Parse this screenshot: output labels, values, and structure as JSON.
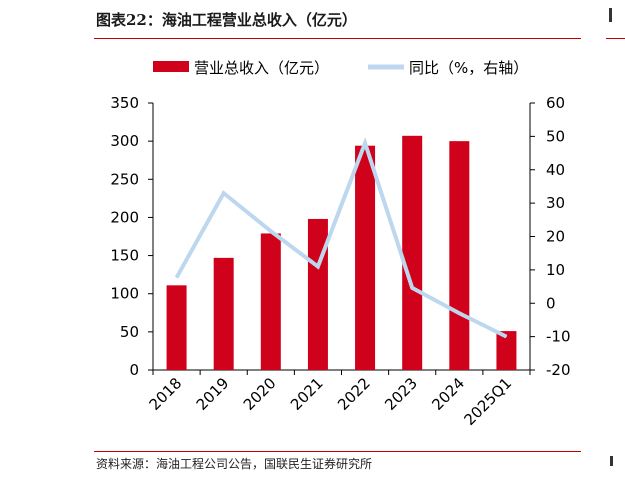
{
  "header": {
    "title": "图表22：海油工程营业总收入（亿元）"
  },
  "footer": {
    "source": "资料来源：海油工程公司公告，国联民生证券研究所"
  },
  "colors": {
    "bar": "#d0021b",
    "line": "#bdd7ee",
    "rule": "#c00000"
  },
  "chart_data": {
    "type": "bar",
    "categories": [
      "2018",
      "2019",
      "2020",
      "2021",
      "2022",
      "2023",
      "2024",
      "2025Q1"
    ],
    "series": [
      {
        "name": "营业总收入（亿元）",
        "type": "bar",
        "axis": "left",
        "values": [
          111,
          147,
          179,
          198,
          294,
          307,
          300,
          51
        ]
      },
      {
        "name": "同比（%，右轴）",
        "type": "line",
        "axis": "right",
        "values": [
          7.7,
          33,
          21.6,
          11,
          48,
          4.6,
          -3,
          -10
        ]
      }
    ],
    "yleft": {
      "ticks": [
        0,
        50,
        100,
        150,
        200,
        250,
        300,
        350
      ],
      "range": [
        0,
        350
      ]
    },
    "yright": {
      "ticks": [
        -20,
        -10,
        0,
        10,
        20,
        30,
        40,
        50,
        60
      ],
      "range": [
        -20,
        60
      ]
    },
    "legend": "top",
    "grid": false
  }
}
